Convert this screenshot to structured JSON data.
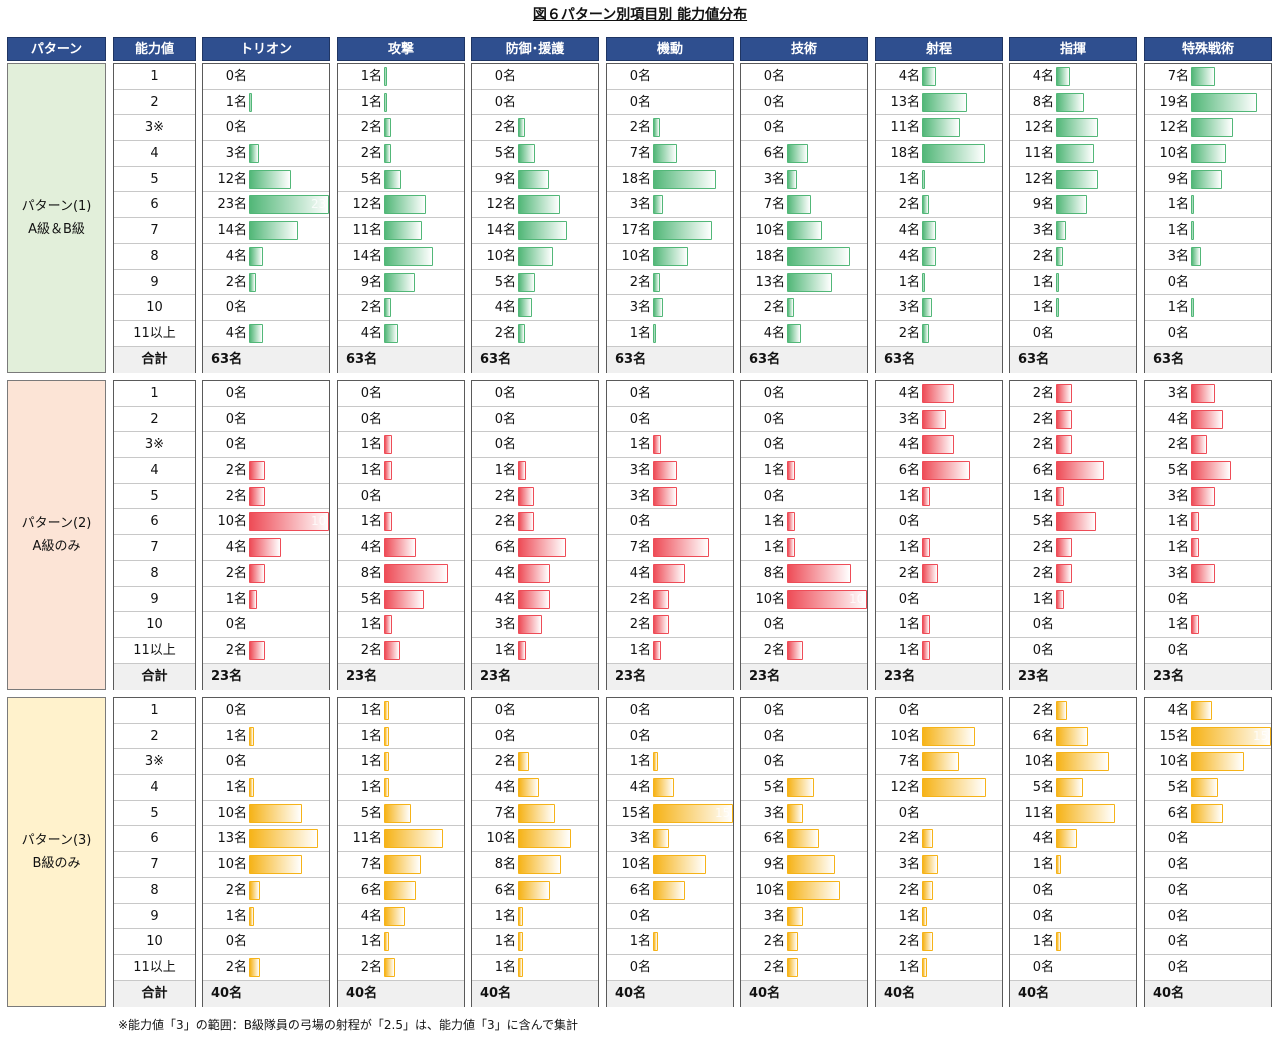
{
  "title": "図６パターン別項目別 能力値分布",
  "headers": {
    "pattern": "パターン",
    "level": "能力値",
    "items": [
      "トリオン",
      "攻撃",
      "防御･援護",
      "機動",
      "技術",
      "射程",
      "指揮",
      "特殊戦術"
    ]
  },
  "levels": [
    "1",
    "2",
    "3※",
    "4",
    "5",
    "6",
    "7",
    "8",
    "9",
    "10",
    "11以上"
  ],
  "total_label": "合計",
  "unit": "名",
  "footnote": "※能力値「3」の範囲：B級隊員の弓場の射程が「2.5」は、能力値「3」に含んで集計",
  "colors": {
    "header_bg": "#2f4f8f",
    "p1_bg": "#e2efda",
    "p1_bar": "#52b778",
    "p2_bg": "#fce4d6",
    "p2_bar": "#ee4c57",
    "p3_bg": "#fff2cc",
    "p3_bar": "#f6b318"
  },
  "chart_data": {
    "type": "table",
    "categories": [
      "1",
      "2",
      "3※",
      "4",
      "5",
      "6",
      "7",
      "8",
      "9",
      "10",
      "11以上"
    ],
    "panels": [
      {
        "name_line1": "パターン(1)",
        "name_line2": "A級＆B級",
        "total": "63名",
        "max": 23,
        "series": [
          {
            "name": "トリオン",
            "values": [
              0,
              1,
              0,
              3,
              12,
              23,
              14,
              4,
              2,
              0,
              4
            ]
          },
          {
            "name": "攻撃",
            "values": [
              1,
              1,
              2,
              2,
              5,
              12,
              11,
              14,
              9,
              2,
              4
            ]
          },
          {
            "name": "防御･援護",
            "values": [
              0,
              0,
              2,
              5,
              9,
              12,
              14,
              10,
              5,
              4,
              2
            ]
          },
          {
            "name": "機動",
            "values": [
              0,
              0,
              2,
              7,
              18,
              3,
              17,
              10,
              2,
              3,
              1
            ]
          },
          {
            "name": "技術",
            "values": [
              0,
              0,
              0,
              6,
              3,
              7,
              10,
              18,
              13,
              2,
              4
            ]
          },
          {
            "name": "射程",
            "values": [
              4,
              13,
              11,
              18,
              1,
              2,
              4,
              4,
              1,
              3,
              2
            ]
          },
          {
            "name": "指揮",
            "values": [
              4,
              8,
              12,
              11,
              12,
              9,
              3,
              2,
              1,
              1,
              0
            ]
          },
          {
            "name": "特殊戦術",
            "values": [
              7,
              19,
              12,
              10,
              9,
              1,
              1,
              3,
              0,
              1,
              0
            ]
          }
        ]
      },
      {
        "name_line1": "パターン(2)",
        "name_line2": "A級のみ",
        "total": "23名",
        "max": 10,
        "series": [
          {
            "name": "トリオン",
            "values": [
              0,
              0,
              0,
              2,
              2,
              10,
              4,
              2,
              1,
              0,
              2
            ]
          },
          {
            "name": "攻撃",
            "values": [
              0,
              0,
              1,
              1,
              0,
              1,
              4,
              8,
              5,
              1,
              2
            ]
          },
          {
            "name": "防御･援護",
            "values": [
              0,
              0,
              0,
              1,
              2,
              2,
              6,
              4,
              4,
              3,
              1
            ]
          },
          {
            "name": "機動",
            "values": [
              0,
              0,
              1,
              3,
              3,
              0,
              7,
              4,
              2,
              2,
              1
            ]
          },
          {
            "name": "技術",
            "values": [
              0,
              0,
              0,
              1,
              0,
              1,
              1,
              8,
              10,
              0,
              2
            ]
          },
          {
            "name": "射程",
            "values": [
              4,
              3,
              4,
              6,
              1,
              0,
              1,
              2,
              0,
              1,
              1
            ]
          },
          {
            "name": "指揮",
            "values": [
              2,
              2,
              2,
              6,
              1,
              5,
              2,
              2,
              1,
              0,
              0
            ]
          },
          {
            "name": "特殊戦術",
            "values": [
              3,
              4,
              2,
              5,
              3,
              1,
              1,
              3,
              0,
              1,
              0
            ]
          }
        ]
      },
      {
        "name_line1": "パターン(3)",
        "name_line2": "B級のみ",
        "total": "40名",
        "max": 15,
        "series": [
          {
            "name": "トリオン",
            "values": [
              0,
              1,
              0,
              1,
              10,
              13,
              10,
              2,
              1,
              0,
              2
            ]
          },
          {
            "name": "攻撃",
            "values": [
              1,
              1,
              1,
              1,
              5,
              11,
              7,
              6,
              4,
              1,
              2
            ]
          },
          {
            "name": "防御･援護",
            "values": [
              0,
              0,
              2,
              4,
              7,
              10,
              8,
              6,
              1,
              1,
              1
            ]
          },
          {
            "name": "機動",
            "values": [
              0,
              0,
              1,
              4,
              15,
              3,
              10,
              6,
              0,
              1,
              0
            ]
          },
          {
            "name": "技術",
            "values": [
              0,
              0,
              0,
              5,
              3,
              6,
              9,
              10,
              3,
              2,
              2
            ]
          },
          {
            "name": "射程",
            "values": [
              0,
              10,
              7,
              12,
              0,
              2,
              3,
              2,
              1,
              2,
              1
            ]
          },
          {
            "name": "指揮",
            "values": [
              2,
              6,
              10,
              5,
              11,
              4,
              1,
              0,
              0,
              1,
              0
            ]
          },
          {
            "name": "特殊戦術",
            "values": [
              4,
              15,
              10,
              5,
              6,
              0,
              0,
              0,
              0,
              0,
              0
            ]
          }
        ]
      }
    ]
  }
}
